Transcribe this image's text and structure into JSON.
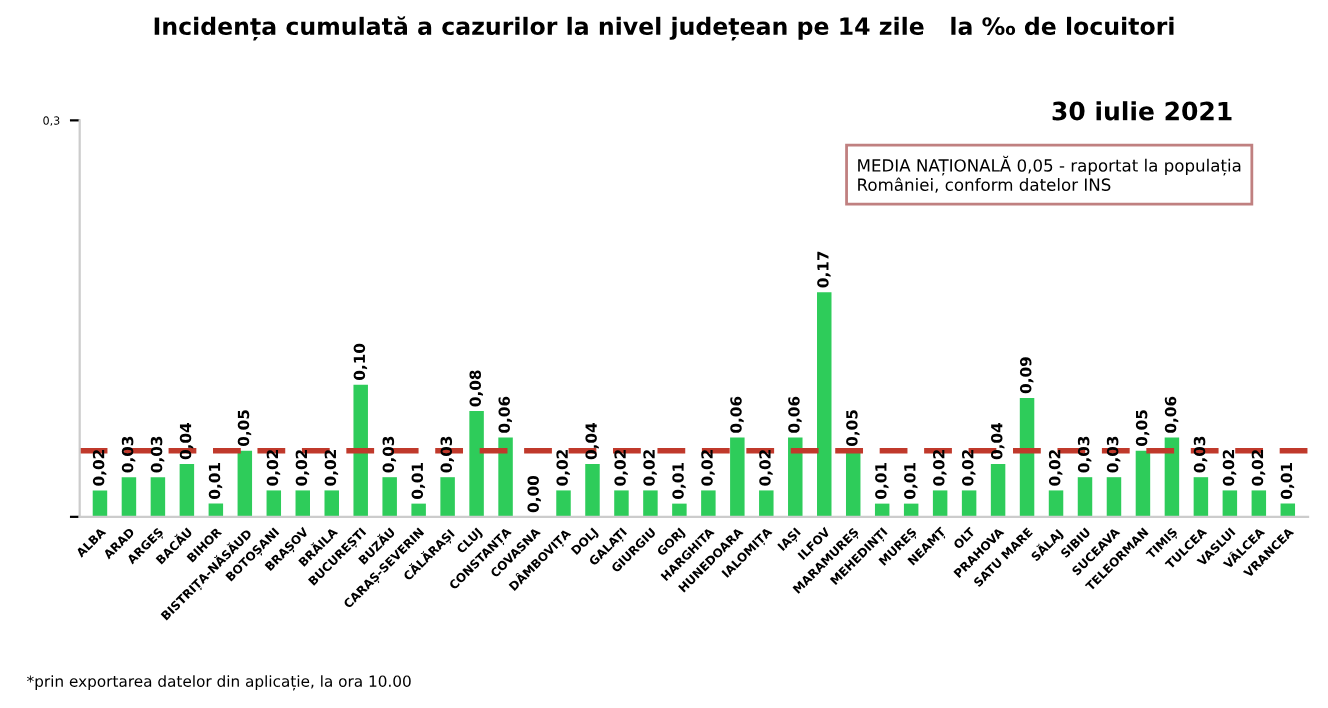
{
  "chart_data": {
    "type": "bar",
    "title": "Incidența cumulată a cazurilor la nivel județean pe 14 zile   la ‰ de locuitori",
    "subtitle": "30 iulie 2021",
    "categories": [
      "ALBA",
      "ARAD",
      "ARGEȘ",
      "BACĂU",
      "BIHOR",
      "BISTRIȚA-NĂSĂUD",
      "BOTOȘANI",
      "BRAȘOV",
      "BRĂILA",
      "BUCUREȘTI",
      "BUZĂU",
      "CARAȘ-SEVERIN",
      "CĂLĂRAȘI",
      "CLUJ",
      "CONSTANȚA",
      "COVASNA",
      "DÂMBOVIȚA",
      "DOLJ",
      "GALAȚI",
      "GIURGIU",
      "GORJ",
      "HARGHITA",
      "HUNEDOARA",
      "IALOMIȚA",
      "IAȘI",
      "ILFOV",
      "MARAMUREȘ",
      "MEHEDINȚI",
      "MUREȘ",
      "NEAMȚ",
      "OLT",
      "PRAHOVA",
      "SATU MARE",
      "SĂLAJ",
      "SIBIU",
      "SUCEAVA",
      "TELEORMAN",
      "TIMIȘ",
      "TULCEA",
      "VASLUI",
      "VÂLCEA",
      "VRANCEA"
    ],
    "values": [
      0.02,
      0.03,
      0.03,
      0.04,
      0.01,
      0.05,
      0.02,
      0.02,
      0.02,
      0.1,
      0.03,
      0.01,
      0.03,
      0.08,
      0.06,
      0.0,
      0.02,
      0.04,
      0.02,
      0.02,
      0.01,
      0.02,
      0.06,
      0.02,
      0.06,
      0.17,
      0.05,
      0.01,
      0.01,
      0.02,
      0.02,
      0.04,
      0.09,
      0.02,
      0.03,
      0.03,
      0.05,
      0.06,
      0.03,
      0.02,
      0.02,
      0.01
    ],
    "value_labels": [
      "0,02",
      "0,03",
      "0,03",
      "0,04",
      "0,01",
      "0,05",
      "0,02",
      "0,02",
      "0,02",
      "0,10",
      "0,03",
      "0,01",
      "0,03",
      "0,08",
      "0,06",
      "0,00",
      "0,02",
      "0,04",
      "0,02",
      "0,02",
      "0,01",
      "0,02",
      "0,06",
      "0,02",
      "0,06",
      "0,17",
      "0,05",
      "0,01",
      "0,01",
      "0,02",
      "0,02",
      "0,04",
      "0,09",
      "0,02",
      "0,03",
      "0,03",
      "0,05",
      "0,06",
      "0,03",
      "0,02",
      "0,02",
      "0,01"
    ],
    "color": "#2ecc5a",
    "ylim": [
      0,
      0.3
    ],
    "yticks": [
      {
        "value": 0,
        "label": null
      },
      {
        "value": 0.3,
        "label": "0,3"
      }
    ],
    "ref_lines": [
      {
        "axis": "y",
        "value": 0.05,
        "color": "#c0392b",
        "line_style": "dashed"
      }
    ],
    "annotations": [
      "MEDIA NAȚIONALĂ 0,05 - raportat la populația României, conform datelor INS",
      "*prin exportarea datelor din aplicație, la ora 10.00"
    ],
    "grid": false,
    "legend": false
  }
}
